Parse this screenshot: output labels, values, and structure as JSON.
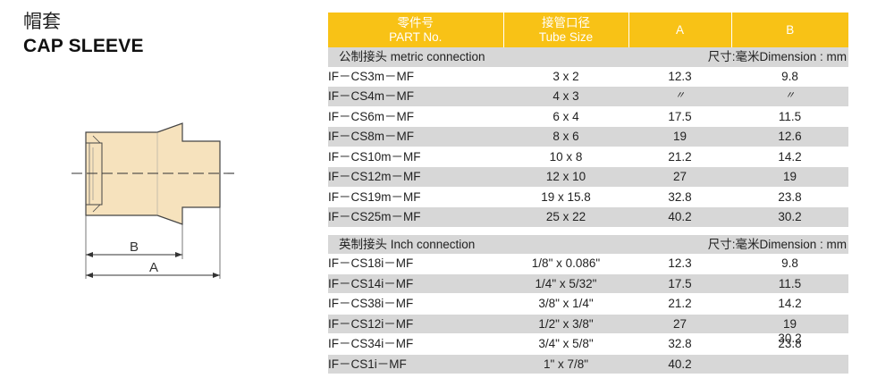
{
  "title": {
    "cn": "帽套",
    "en": "CAP SLEEVE"
  },
  "drawing": {
    "dim_b": "B",
    "dim_a": "A"
  },
  "table": {
    "headers": [
      {
        "cn": "零件号",
        "en": "PART No."
      },
      {
        "cn": "接管口径",
        "en": "Tube Size"
      },
      {
        "cn": "A",
        "en": ""
      },
      {
        "cn": "B",
        "en": ""
      }
    ],
    "metric": {
      "label": "公制接头 metric connection",
      "unit": "尺寸:毫米Dimension : mm",
      "rows": [
        {
          "part": "IF－CS3m－MF",
          "size": "3 x 2",
          "a": "12.3",
          "b": "9.8"
        },
        {
          "part": "IF－CS4m－MF",
          "size": "4 x 3",
          "a": "〃",
          "b": "〃"
        },
        {
          "part": "IF－CS6m－MF",
          "size": "6 x 4",
          "a": "17.5",
          "b": "11.5"
        },
        {
          "part": "IF－CS8m－MF",
          "size": "8 x 6",
          "a": "19",
          "b": "12.6"
        },
        {
          "part": "IF－CS10m－MF",
          "size": "10 x 8",
          "a": "21.2",
          "b": "14.2"
        },
        {
          "part": "IF－CS12m－MF",
          "size": "12 x 10",
          "a": "27",
          "b": "19"
        },
        {
          "part": "IF－CS19m－MF",
          "size": "19 x 15.8",
          "a": "32.8",
          "b": "23.8"
        },
        {
          "part": "IF－CS25m－MF",
          "size": "25 x 22",
          "a": "40.2",
          "b": "30.2"
        }
      ]
    },
    "inch": {
      "label": "英制接头 Inch connection",
      "unit": "尺寸:毫米Dimension : mm",
      "rows": [
        {
          "part": "IF－CS18i－MF",
          "size": "1/8\" x 0.086\"",
          "a": "12.3",
          "b": "9.8"
        },
        {
          "part": "IF－CS14i－MF",
          "size": "1/4\" x 5/32\"",
          "a": "17.5",
          "b": "11.5"
        },
        {
          "part": "IF－CS38i－MF",
          "size": "3/8\" x 1/4\"",
          "a": "21.2",
          "b": "14.2"
        },
        {
          "part": "IF－CS12i－MF",
          "size": "1/2\" x 3/8\"",
          "a": "27",
          "b": "19"
        },
        {
          "part": "IF－CS34i－MF",
          "size": "3/4\" x 5/8\"",
          "a": "32.8",
          "b": "23.8",
          "b_overlap": "30.2"
        },
        {
          "part": "IF－CS1i－MF",
          "size": "1\" x 7/8\"",
          "a": "40.2",
          "b": ""
        }
      ]
    }
  }
}
